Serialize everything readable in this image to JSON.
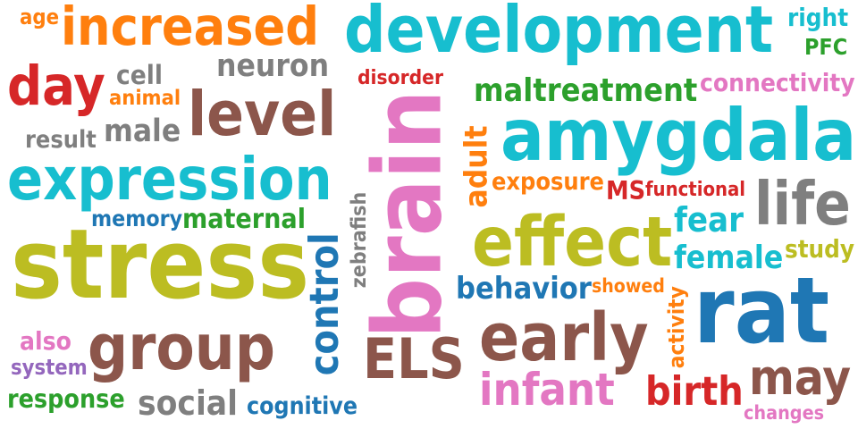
{
  "words": [
    {
      "text": "age",
      "color": "#ff7f0e"
    },
    {
      "text": "increased",
      "color": "#ff7f0e"
    },
    {
      "text": "development",
      "color": "#17becf"
    },
    {
      "text": "right",
      "color": "#17becf"
    },
    {
      "text": "PFC",
      "color": "#2ca02c"
    },
    {
      "text": "day",
      "color": "#d62728"
    },
    {
      "text": "cell",
      "color": "#7f7f7f"
    },
    {
      "text": "animal",
      "color": "#ff7f0e"
    },
    {
      "text": "neuron",
      "color": "#7f7f7f"
    },
    {
      "text": "disorder",
      "color": "#d62728"
    },
    {
      "text": "maltreatment",
      "color": "#2ca02c"
    },
    {
      "text": "connectivity",
      "color": "#e377c2"
    },
    {
      "text": "level",
      "color": "#8c564b"
    },
    {
      "text": "result",
      "color": "#7f7f7f"
    },
    {
      "text": "male",
      "color": "#7f7f7f"
    },
    {
      "text": "amygdala",
      "color": "#17becf"
    },
    {
      "text": "expression",
      "color": "#17becf"
    },
    {
      "text": "brain",
      "color": "#e377c2"
    },
    {
      "text": "adult",
      "color": "#ff7f0e"
    },
    {
      "text": "exposure",
      "color": "#ff7f0e"
    },
    {
      "text": "MS",
      "color": "#d62728"
    },
    {
      "text": "functional",
      "color": "#d62728"
    },
    {
      "text": "life",
      "color": "#7f7f7f"
    },
    {
      "text": "memory",
      "color": "#1f77b4"
    },
    {
      "text": "maternal",
      "color": "#2ca02c"
    },
    {
      "text": "zebrafish",
      "color": "#7f7f7f"
    },
    {
      "text": "fear",
      "color": "#17becf"
    },
    {
      "text": "effect",
      "color": "#bcbd22"
    },
    {
      "text": "stress",
      "color": "#bcbd22"
    },
    {
      "text": "control",
      "color": "#1f77b4"
    },
    {
      "text": "female",
      "color": "#17becf"
    },
    {
      "text": "study",
      "color": "#bcbd22"
    },
    {
      "text": "behavior",
      "color": "#1f77b4"
    },
    {
      "text": "showed",
      "color": "#ff7f0e"
    },
    {
      "text": "rat",
      "color": "#1f77b4"
    },
    {
      "text": "also",
      "color": "#e377c2"
    },
    {
      "text": "group",
      "color": "#8c564b"
    },
    {
      "text": "early",
      "color": "#8c564b"
    },
    {
      "text": "activity",
      "color": "#ff7f0e"
    },
    {
      "text": "system",
      "color": "#9467bd"
    },
    {
      "text": "ELS",
      "color": "#8c564b"
    },
    {
      "text": "may",
      "color": "#8c564b"
    },
    {
      "text": "response",
      "color": "#2ca02c"
    },
    {
      "text": "social",
      "color": "#7f7f7f"
    },
    {
      "text": "cognitive",
      "color": "#1f77b4"
    },
    {
      "text": "infant",
      "color": "#e377c2"
    },
    {
      "text": "birth",
      "color": "#d62728"
    },
    {
      "text": "changes",
      "color": "#e377c2"
    }
  ]
}
